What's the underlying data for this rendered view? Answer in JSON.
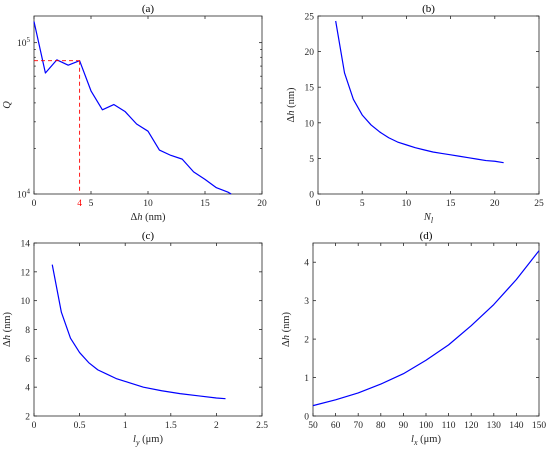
{
  "chart_data": [
    {
      "panel": "a",
      "type": "line",
      "title": "(a)",
      "xlabel": "Δh (nm)",
      "ylabel": "Q",
      "xlim": [
        0,
        20
      ],
      "ylim": [
        10000,
        150000
      ],
      "yscale": "log",
      "xticks": [
        0,
        5,
        10,
        15,
        20
      ],
      "yticks": [
        10000,
        100000
      ],
      "yticklabels": [
        {
          "base": "10",
          "exp": "4"
        },
        {
          "base": "10",
          "exp": "5"
        }
      ],
      "grid": false,
      "series_color": "#0000ff",
      "series": [
        {
          "x": [
            0,
            1,
            2,
            3,
            4,
            5,
            6,
            7,
            8,
            9,
            10,
            11,
            12,
            13,
            14,
            15,
            16,
            17,
            17.3
          ],
          "y": [
            138000,
            63000,
            77000,
            71000,
            76000,
            48000,
            36000,
            39000,
            35000,
            29000,
            26000,
            19500,
            18000,
            17000,
            14000,
            12500,
            11000,
            10300,
            10000
          ]
        }
      ],
      "annotation": {
        "label": "4",
        "color": "#ff0000",
        "x": 4,
        "y": 76000
      }
    },
    {
      "panel": "b",
      "type": "line",
      "title": "(b)",
      "xlabel": "N_l",
      "ylabel": "Δh (nm)",
      "xlim": [
        0,
        25
      ],
      "ylim": [
        0,
        25
      ],
      "xticks": [
        0,
        5,
        10,
        15,
        20,
        25
      ],
      "yticks": [
        0,
        5,
        10,
        15,
        20,
        25
      ],
      "grid": false,
      "series_color": "#0000ff",
      "series": [
        {
          "x": [
            2,
            3,
            4,
            5,
            6,
            7,
            8,
            9,
            10,
            11,
            12,
            13,
            14,
            15,
            16,
            17,
            18,
            19,
            20,
            21
          ],
          "y": [
            24.3,
            17.0,
            13.3,
            11.1,
            9.7,
            8.7,
            7.9,
            7.3,
            6.9,
            6.5,
            6.2,
            5.9,
            5.7,
            5.5,
            5.3,
            5.1,
            4.9,
            4.7,
            4.6,
            4.4
          ]
        }
      ]
    },
    {
      "panel": "c",
      "type": "line",
      "title": "(c)",
      "xlabel": "l_y (μm)",
      "ylabel": "Δh (nm)",
      "xlim": [
        0,
        2.5
      ],
      "ylim": [
        2,
        14
      ],
      "xticks": [
        0,
        0.5,
        1,
        1.5,
        2,
        2.5
      ],
      "yticks": [
        2,
        4,
        6,
        8,
        10,
        12,
        14
      ],
      "grid": false,
      "series_color": "#0000ff",
      "series": [
        {
          "x": [
            0.2,
            0.3,
            0.4,
            0.5,
            0.6,
            0.7,
            0.8,
            0.9,
            1.0,
            1.2,
            1.4,
            1.6,
            1.8,
            2.0,
            2.1
          ],
          "y": [
            12.5,
            9.2,
            7.4,
            6.4,
            5.7,
            5.2,
            4.9,
            4.6,
            4.4,
            4.0,
            3.75,
            3.55,
            3.4,
            3.25,
            3.2
          ]
        }
      ]
    },
    {
      "panel": "d",
      "type": "line",
      "title": "(d)",
      "xlabel": "l_x (μm)",
      "ylabel": "Δh (nm)",
      "xlim": [
        50,
        150
      ],
      "ylim": [
        0,
        4.5
      ],
      "xticks": [
        50,
        60,
        70,
        80,
        90,
        100,
        110,
        120,
        130,
        140,
        150
      ],
      "yticks": [
        0,
        1,
        2,
        3,
        4
      ],
      "grid": false,
      "series_color": "#0000ff",
      "series": [
        {
          "x": [
            50,
            60,
            70,
            80,
            90,
            100,
            110,
            120,
            130,
            140,
            150
          ],
          "y": [
            0.27,
            0.42,
            0.6,
            0.83,
            1.1,
            1.45,
            1.85,
            2.35,
            2.9,
            3.55,
            4.3
          ]
        }
      ]
    }
  ]
}
